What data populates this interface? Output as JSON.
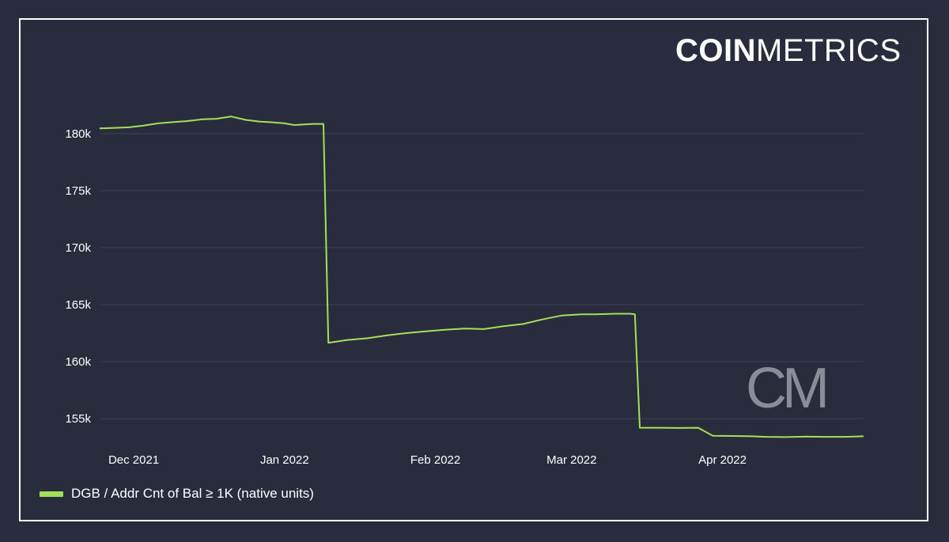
{
  "brand": {
    "logo_bold": "COIN",
    "logo_light": "METRICS",
    "watermark": "CM"
  },
  "colors": {
    "background": "#282c3c",
    "series": "#a3e05a",
    "grid": "#3e4354",
    "text": "#ffffff",
    "watermark": "#8a8d97"
  },
  "chart_data": {
    "type": "line",
    "title": "",
    "xlabel": "",
    "ylabel": "",
    "ylim": [
      153200,
      182000
    ],
    "yticks": [
      155000,
      160000,
      165000,
      170000,
      175000,
      180000
    ],
    "ytick_labels": [
      "155k",
      "160k",
      "165k",
      "170k",
      "175k",
      "180k"
    ],
    "xlim": [
      "2021-11-24",
      "2022-04-30"
    ],
    "xticks": [
      "2021-12-01",
      "2022-01-01",
      "2022-02-01",
      "2022-03-01",
      "2022-04-01"
    ],
    "xtick_labels": [
      "Dec 2021",
      "Jan 2022",
      "Feb 2022",
      "Mar 2022",
      "Apr 2022"
    ],
    "grid": true,
    "legend_position": "bottom-left",
    "series": [
      {
        "name": "DGB / Addr Cnt of Bal ≥ 1K (native units)",
        "x": [
          "2021-11-24",
          "2021-11-27",
          "2021-11-30",
          "2021-12-03",
          "2021-12-06",
          "2021-12-09",
          "2021-12-12",
          "2021-12-15",
          "2021-12-18",
          "2021-12-21",
          "2021-12-24",
          "2021-12-26",
          "2021-12-27",
          "2021-12-29",
          "2022-01-01",
          "2022-01-03",
          "2022-01-05",
          "2022-01-07",
          "2022-01-09",
          "2022-01-10",
          "2022-01-14",
          "2022-01-18",
          "2022-01-22",
          "2022-01-26",
          "2022-01-30",
          "2022-02-03",
          "2022-02-07",
          "2022-02-11",
          "2022-02-15",
          "2022-02-19",
          "2022-02-23",
          "2022-02-27",
          "2022-03-03",
          "2022-03-06",
          "2022-03-10",
          "2022-03-13",
          "2022-03-14",
          "2022-03-15",
          "2022-03-19",
          "2022-03-23",
          "2022-03-27",
          "2022-03-30",
          "2022-04-03",
          "2022-04-07",
          "2022-04-10",
          "2022-04-14",
          "2022-04-18",
          "2022-04-22",
          "2022-04-26",
          "2022-04-30"
        ],
        "values": [
          180450,
          180500,
          180550,
          180700,
          180900,
          181000,
          181100,
          181250,
          181300,
          181500,
          181200,
          181100,
          181050,
          181000,
          180900,
          180750,
          180800,
          180850,
          180850,
          161650,
          161900,
          162050,
          162300,
          162500,
          162650,
          162800,
          162900,
          162850,
          163100,
          163300,
          163700,
          164050,
          164150,
          164150,
          164200,
          164200,
          164150,
          154200,
          154200,
          154180,
          154200,
          153500,
          153480,
          153450,
          153400,
          153380,
          153420,
          153400,
          153400,
          153450
        ]
      }
    ]
  },
  "legend": {
    "label": "DGB / Addr Cnt of Bal ≥ 1K (native units)"
  }
}
